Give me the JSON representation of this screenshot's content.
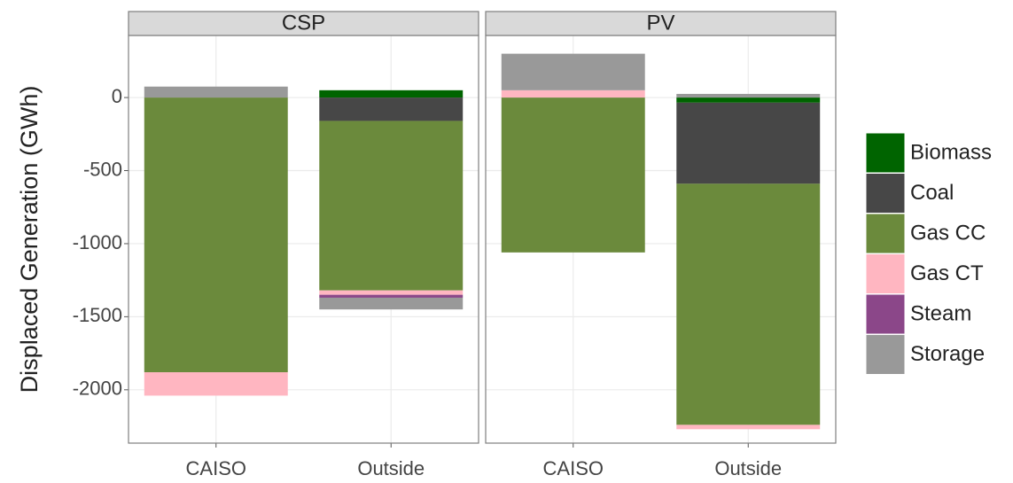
{
  "chart_data": {
    "type": "bar",
    "stacked": true,
    "y_label": "Displaced Generation (GWh)",
    "facets": [
      "CSP",
      "PV"
    ],
    "categories": [
      "CAISO",
      "Outside"
    ],
    "ylim": [
      -2365,
      425
    ],
    "yticks": [
      -2000,
      -1500,
      -1000,
      -500,
      0
    ],
    "grid": true,
    "legend": "right",
    "series": [
      {
        "name": "Biomass",
        "color": "#006400",
        "values": [
          [
            0,
            50
          ],
          [
            0,
            -35
          ]
        ]
      },
      {
        "name": "Coal",
        "color": "#474747",
        "values": [
          [
            0,
            -160
          ],
          [
            0,
            -555
          ]
        ]
      },
      {
        "name": "Gas CC",
        "color": "#6b8a3c",
        "values": [
          [
            -1880,
            -1160
          ],
          [
            -1060,
            -1650
          ]
        ]
      },
      {
        "name": "Gas CT",
        "color": "#ffb6c1",
        "values": [
          [
            -160,
            -30
          ],
          [
            50,
            -30
          ]
        ]
      },
      {
        "name": "Steam",
        "color": "#8b4789",
        "values": [
          [
            0,
            -20
          ],
          [
            0,
            0
          ]
        ]
      },
      {
        "name": "Storage",
        "color": "#999999",
        "values": [
          [
            75,
            -80
          ],
          [
            250,
            25
          ]
        ]
      }
    ]
  }
}
